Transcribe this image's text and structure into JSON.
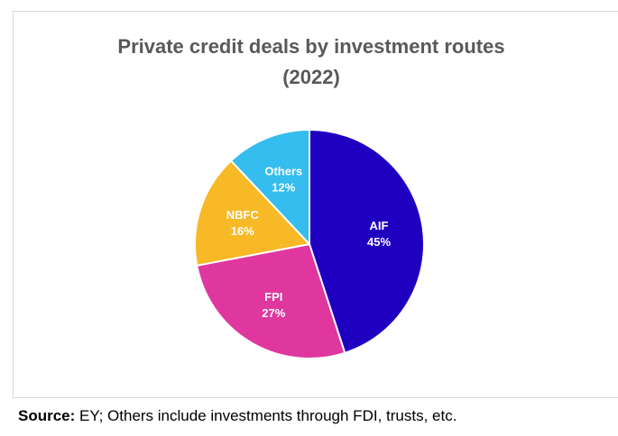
{
  "chart_data": {
    "type": "pie",
    "title_line1": "Private credit deals by investment routes",
    "title_line2": "(2022)",
    "start_angle_deg": 0,
    "direction": "clockwise",
    "slices": [
      {
        "name": "AIF",
        "value": 45,
        "label": "45%",
        "color": "#2000c0"
      },
      {
        "name": "FPI",
        "value": 27,
        "label": "27%",
        "color": "#e0379f"
      },
      {
        "name": "NBFC",
        "value": 16,
        "label": "16%",
        "color": "#f7b926"
      },
      {
        "name": "Others",
        "value": 12,
        "label": "12%",
        "color": "#34bdee"
      }
    ]
  },
  "source": {
    "label": "Source:",
    "text": " EY; Others include investments through FDI, trusts, etc."
  }
}
